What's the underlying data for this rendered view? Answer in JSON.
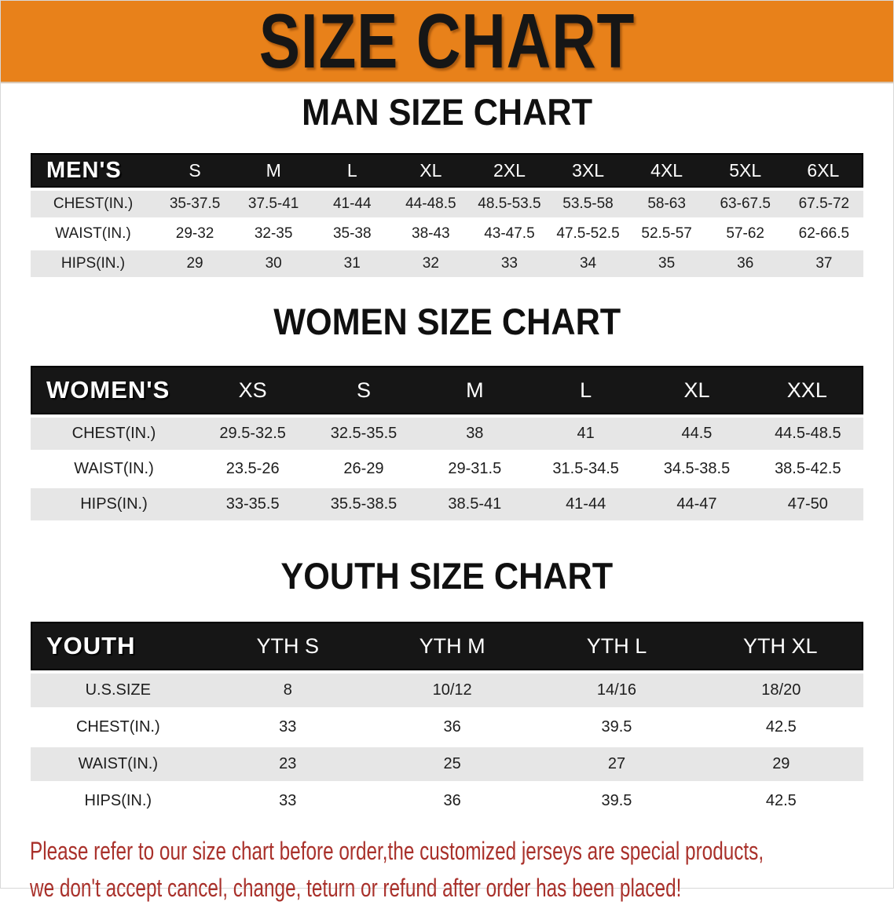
{
  "banner": {
    "title": "SIZE CHART"
  },
  "tables": [
    {
      "id": "men",
      "title": "MAN SIZE CHART",
      "corner_label": "MEN'S",
      "columns": [
        "S",
        "M",
        "L",
        "XL",
        "2XL",
        "3XL",
        "4XL",
        "5XL",
        "6XL"
      ],
      "rows": [
        {
          "label": "CHEST(IN.)",
          "values": [
            "35-37.5",
            "37.5-41",
            "41-44",
            "44-48.5",
            "48.5-53.5",
            "53.5-58",
            "58-63",
            "63-67.5",
            "67.5-72"
          ]
        },
        {
          "label": "WAIST(IN.)",
          "values": [
            "29-32",
            "32-35",
            "35-38",
            "38-43",
            "43-47.5",
            "47.5-52.5",
            "52.5-57",
            "57-62",
            "62-66.5"
          ]
        },
        {
          "label": "HIPS(IN.)",
          "values": [
            "29",
            "30",
            "31",
            "32",
            "33",
            "34",
            "35",
            "36",
            "37"
          ]
        }
      ]
    },
    {
      "id": "women",
      "title": "WOMEN SIZE CHART",
      "corner_label": "WOMEN'S",
      "columns": [
        "XS",
        "S",
        "M",
        "L",
        "XL",
        "XXL"
      ],
      "rows": [
        {
          "label": "CHEST(IN.)",
          "values": [
            "29.5-32.5",
            "32.5-35.5",
            "38",
            "41",
            "44.5",
            "44.5-48.5"
          ]
        },
        {
          "label": "WAIST(IN.)",
          "values": [
            "23.5-26",
            "26-29",
            "29-31.5",
            "31.5-34.5",
            "34.5-38.5",
            "38.5-42.5"
          ]
        },
        {
          "label": "HIPS(IN.)",
          "values": [
            "33-35.5",
            "35.5-38.5",
            "38.5-41",
            "41-44",
            "44-47",
            "47-50"
          ]
        }
      ]
    },
    {
      "id": "youth",
      "title": "YOUTH SIZE CHART",
      "corner_label": "YOUTH",
      "columns": [
        "YTH S",
        "YTH M",
        "YTH L",
        "YTH XL"
      ],
      "rows": [
        {
          "label": "U.S.SIZE",
          "values": [
            "8",
            "10/12",
            "14/16",
            "18/20"
          ]
        },
        {
          "label": "CHEST(IN.)",
          "values": [
            "33",
            "36",
            "39.5",
            "42.5"
          ]
        },
        {
          "label": "WAIST(IN.)",
          "values": [
            "23",
            "25",
            "27",
            "29"
          ]
        },
        {
          "label": "HIPS(IN.)",
          "values": [
            "33",
            "36",
            "39.5",
            "42.5"
          ]
        }
      ]
    }
  ],
  "footer": {
    "line1": "Please refer to our size chart before order,the customized jerseys are special products,",
    "line2": "we don't accept cancel, change, teturn or refund after order has been placed!"
  },
  "colors": {
    "banner_bg": "#E8811A",
    "banner_text": "#161616",
    "table_header_bg": "#161616",
    "table_header_text": "#FFFFFF",
    "row_shade": "#E6E6E6",
    "row_white": "#FFFFFF",
    "notice_text": "#A9312B"
  }
}
